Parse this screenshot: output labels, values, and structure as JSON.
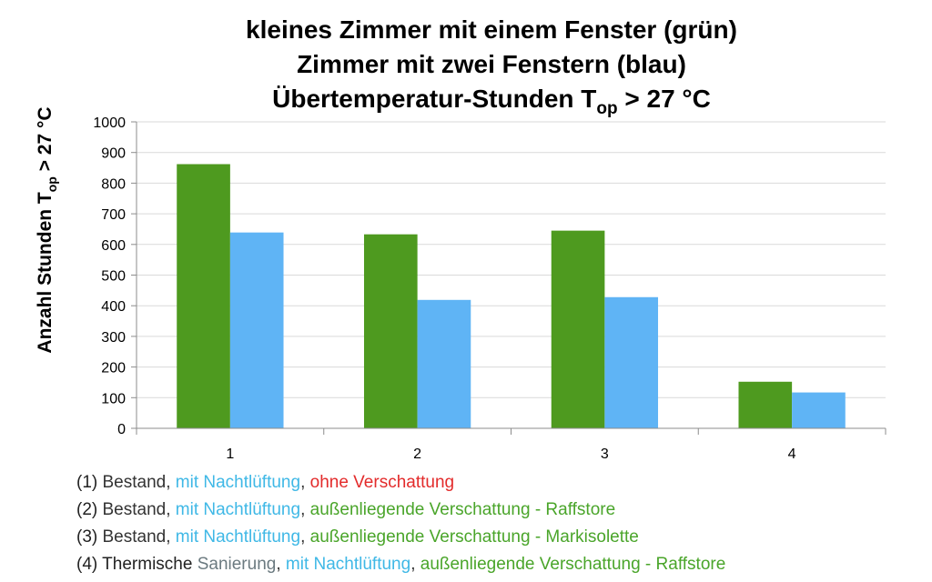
{
  "chart_data": {
    "type": "bar",
    "title_lines": [
      "kleines Zimmer mit einem Fenster (grün)",
      "Zimmer mit zwei Fenstern (blau)"
    ],
    "title_line3": {
      "prefix": "Übertemperatur-Stunden T",
      "subscript": "op",
      "suffix": " > 27 °C"
    },
    "ylabel": {
      "prefix": "Anzahl Stunden  T",
      "subscript": "op",
      "suffix": " > 27 °C"
    },
    "categories": [
      "1",
      "2",
      "3",
      "4"
    ],
    "ylim": [
      0,
      1000
    ],
    "yticks": [
      0,
      100,
      200,
      300,
      400,
      500,
      600,
      700,
      800,
      900,
      1000
    ],
    "grid": true,
    "series": [
      {
        "color": "#4e9a1f",
        "values": [
          862,
          633,
          645,
          152
        ]
      },
      {
        "color": "#5fb4f5",
        "values": [
          639,
          419,
          428,
          117
        ]
      }
    ]
  },
  "notes": [
    {
      "segments": [
        {
          "text": "(1) ",
          "color": "#222222"
        },
        {
          "text": "Bestand, ",
          "color": "#333333"
        },
        {
          "text": "mit Nachtlüftung",
          "color": "#3fb8e6"
        },
        {
          "text": ", ",
          "color": "#333333"
        },
        {
          "text": "ohne Verschattung",
          "color": "#e32b2b"
        }
      ]
    },
    {
      "segments": [
        {
          "text": "(2) ",
          "color": "#222222"
        },
        {
          "text": "Bestand, ",
          "color": "#333333"
        },
        {
          "text": "mit Nachtlüftung",
          "color": "#3fb8e6"
        },
        {
          "text": ", ",
          "color": "#333333"
        },
        {
          "text": "außenliegende Verschattung  - Raffstore",
          "color": "#4aa52a"
        }
      ]
    },
    {
      "segments": [
        {
          "text": "(3) ",
          "color": "#222222"
        },
        {
          "text": "Bestand, ",
          "color": "#333333"
        },
        {
          "text": "mit Nachtlüftung",
          "color": "#3fb8e6"
        },
        {
          "text": ", ",
          "color": "#333333"
        },
        {
          "text": "außenliegende Verschattung - Markisolette",
          "color": "#4aa52a"
        }
      ]
    },
    {
      "segments": [
        {
          "text": "(4) ",
          "color": "#222222"
        },
        {
          "text": "Thermische ",
          "color": "#222222"
        },
        {
          "text": "Sanierung",
          "color": "#6b7a80"
        },
        {
          "text": ", ",
          "color": "#333333"
        },
        {
          "text": "mit Nachtlüftung",
          "color": "#3fb8e6"
        },
        {
          "text": ", ",
          "color": "#333333"
        },
        {
          "text": "außenliegende Verschattung - Raffstore",
          "color": "#4aa52a"
        }
      ]
    }
  ]
}
